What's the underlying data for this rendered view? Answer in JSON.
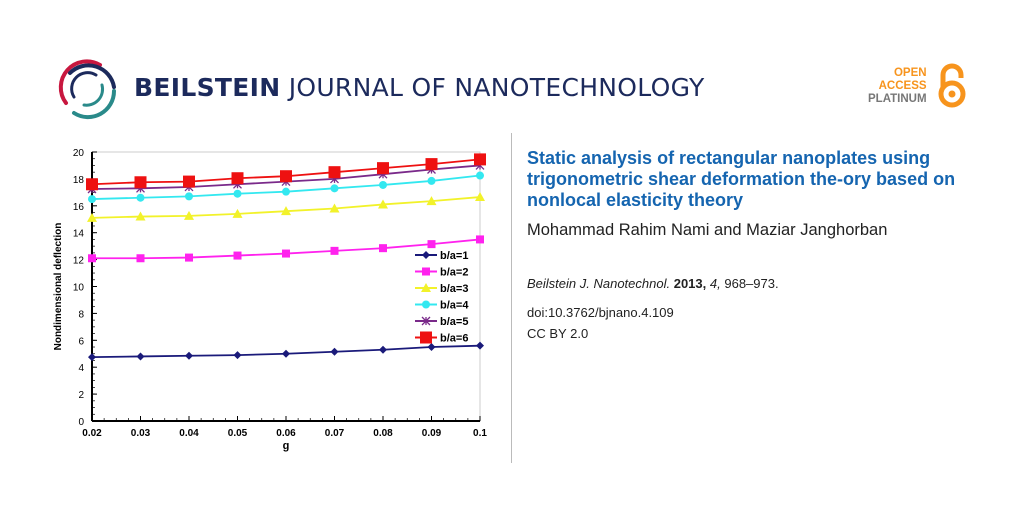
{
  "header": {
    "journal_bold": "BEILSTEIN",
    "journal_light": "JOURNAL OF NANOTECHNOLOGY",
    "open_access": [
      "OPEN",
      "ACCESS",
      "PLATINUM"
    ]
  },
  "article": {
    "title": "Static analysis of rectangular nanoplates using trigonometric shear deformation the-ory based on nonlocal elasticity theory",
    "authors": "Mohammad Rahim Nami and Maziar Janghorban",
    "journal_abbrev": "Beilstein J. Nanotechnol.",
    "year": "2013,",
    "volume": "4,",
    "pages": "968–973.",
    "doi": "doi:10.3762/bjnano.4.109",
    "license": "CC BY 2.0"
  },
  "chart_data": {
    "type": "line",
    "title": "",
    "xlabel": "g",
    "ylabel": "Nondimensional deflection",
    "x": [
      0.02,
      0.03,
      0.04,
      0.05,
      0.06,
      0.07,
      0.08,
      0.09,
      0.1
    ],
    "x_tick_labels": [
      "0.02",
      "0.03",
      "0.04",
      "0.05",
      "0.06",
      "0.07",
      "0.08",
      "0.09",
      "0.1"
    ],
    "y_ticks": [
      0,
      2,
      4,
      6,
      8,
      10,
      12,
      14,
      16,
      18,
      20
    ],
    "xlim": [
      0.02,
      0.1
    ],
    "ylim": [
      0,
      20
    ],
    "grid": false,
    "legend_position": "right-middle",
    "series": [
      {
        "name": "b/a=1",
        "color": "#1a1a7a",
        "marker": "diamond",
        "values": [
          4.75,
          4.8,
          4.85,
          4.9,
          5.0,
          5.15,
          5.3,
          5.5,
          5.6
        ]
      },
      {
        "name": "b/a=2",
        "color": "#ff22ee",
        "marker": "square",
        "values": [
          12.1,
          12.1,
          12.15,
          12.3,
          12.45,
          12.65,
          12.85,
          13.15,
          13.5
        ]
      },
      {
        "name": "b/a=3",
        "color": "#f2f22a",
        "marker": "triangle",
        "values": [
          15.1,
          15.2,
          15.25,
          15.4,
          15.6,
          15.8,
          16.1,
          16.35,
          16.65
        ]
      },
      {
        "name": "b/a=4",
        "color": "#33e8f0",
        "marker": "circle",
        "values": [
          16.5,
          16.6,
          16.7,
          16.9,
          17.05,
          17.3,
          17.55,
          17.85,
          18.25
        ]
      },
      {
        "name": "b/a=5",
        "color": "#7a2a8a",
        "marker": "star",
        "values": [
          17.25,
          17.3,
          17.4,
          17.6,
          17.8,
          18.0,
          18.35,
          18.7,
          19.0
        ]
      },
      {
        "name": "b/a=6",
        "color": "#ee1111",
        "marker": "bigsquare",
        "values": [
          17.6,
          17.75,
          17.8,
          18.05,
          18.2,
          18.5,
          18.8,
          19.1,
          19.45
        ]
      }
    ]
  }
}
